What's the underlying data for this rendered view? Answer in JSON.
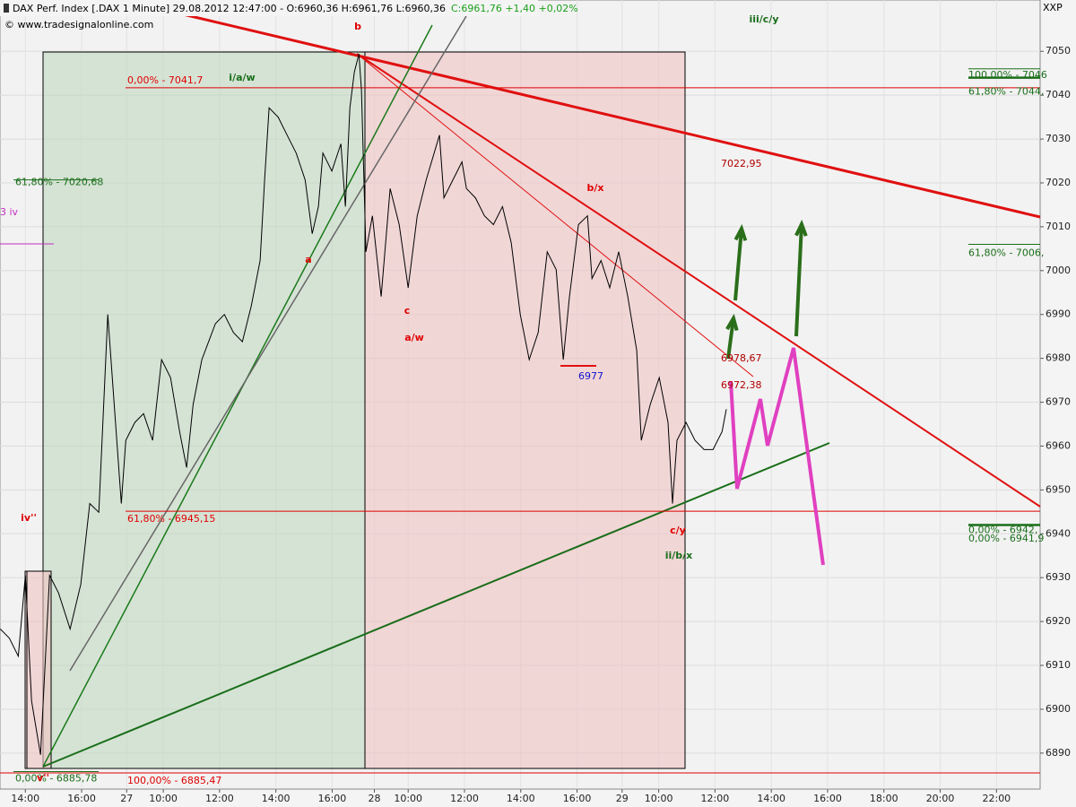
{
  "chart_data": {
    "type": "line",
    "title": "DAX Perf. Index [.DAX  1 Minute] 29.08.2012 12:47:00 - O:6960,36 H:6961,76 L:6960,36",
    "subtitle": "C:6961,76 +1,40 +0,02%",
    "source": "© www.tradesignalonline.com",
    "corner_label": "XXP",
    "xlim": [
      -0.9,
      36.05
    ],
    "ylim": [
      6881.8,
      7061.7
    ],
    "xticks": [
      {
        "value": 0,
        "label": "14:00"
      },
      {
        "value": 2,
        "label": "16:00"
      },
      {
        "value": 3.6,
        "label": "27"
      },
      {
        "value": 4.9,
        "label": "10:00"
      },
      {
        "value": 6.9,
        "label": "12:00"
      },
      {
        "value": 8.9,
        "label": "14:00"
      },
      {
        "value": 10.9,
        "label": "16:00"
      },
      {
        "value": 12.4,
        "label": "28"
      },
      {
        "value": 13.6,
        "label": "10:00"
      },
      {
        "value": 15.6,
        "label": "12:00"
      },
      {
        "value": 17.6,
        "label": "14:00"
      },
      {
        "value": 19.6,
        "label": "16:00"
      },
      {
        "value": 21.2,
        "label": "29"
      },
      {
        "value": 22.5,
        "label": "10:00"
      },
      {
        "value": 24.5,
        "label": "12:00"
      },
      {
        "value": 26.5,
        "label": "14:00"
      },
      {
        "value": 28.5,
        "label": "16:00"
      },
      {
        "value": 30.5,
        "label": "18:00"
      },
      {
        "value": 32.5,
        "label": "20:00"
      },
      {
        "value": 34.5,
        "label": "22:00"
      }
    ],
    "yticks": [
      6890,
      6900,
      6910,
      6920,
      6930,
      6940,
      6950,
      6960,
      6970,
      6980,
      6990,
      7000,
      7010,
      7020,
      7030,
      7040,
      7050
    ],
    "grid": true,
    "series": [
      {
        "color": "#000000",
        "x": [
          -0.89,
          -0.57,
          -0.25,
          0,
          0.22,
          0.54,
          0.86,
          1.18,
          1.59,
          1.97,
          2.29,
          2.61,
          2.93,
          3.18,
          3.41,
          3.57,
          3.89,
          4.2,
          4.52,
          4.84,
          5.16,
          5.48,
          5.73,
          5.96,
          6.27,
          6.75,
          7.07,
          7.39,
          7.71,
          8.03,
          8.34,
          8.5,
          8.66,
          8.98,
          9.3,
          9.62,
          9.94,
          10.19,
          10.41,
          10.57,
          10.89,
          11.21,
          11.37,
          11.53,
          11.69,
          11.85,
          11.94,
          12.1,
          12.33,
          12.64,
          12.96,
          13.28,
          13.6,
          13.92,
          14.24,
          14.71,
          14.87,
          15.19,
          15.51,
          15.67,
          15.99,
          16.31,
          16.63,
          16.95,
          17.26,
          17.58,
          17.9,
          18.22,
          18.54,
          18.86,
          19.11,
          19.33,
          19.65,
          19.97,
          20.13,
          20.45,
          20.76,
          21.08,
          21.4,
          21.72,
          21.88,
          22.2,
          22.52,
          22.83,
          22.99,
          23.15,
          23.47,
          23.79,
          24.11,
          24.43,
          24.75,
          24.9
        ],
        "values": [
          6918.3,
          6916.2,
          6912.1,
          6930.5,
          6901.9,
          6889.6,
          6930.5,
          6926.5,
          6918.3,
          6928.5,
          6946.9,
          6944.9,
          6990.0,
          6967.4,
          6946.9,
          6961.3,
          6965.4,
          6967.4,
          6961.3,
          6979.7,
          6975.6,
          6963.3,
          6955.1,
          6969.5,
          6979.7,
          6987.9,
          6990.0,
          6985.9,
          6983.8,
          6992.0,
          7002.3,
          7020.7,
          7037.1,
          7035.0,
          7030.9,
          7026.8,
          7020.7,
          7008.4,
          7014.6,
          7026.8,
          7022.7,
          7028.9,
          7014.6,
          7037.1,
          7045.3,
          7049.4,
          7041.2,
          7004.3,
          7012.5,
          6994.1,
          7018.7,
          7010.5,
          6996.1,
          7012.5,
          7020.7,
          7030.9,
          7016.6,
          7020.7,
          7024.8,
          7018.7,
          7016.6,
          7012.5,
          7010.5,
          7014.6,
          7006.4,
          6990.0,
          6979.7,
          6985.9,
          7004.3,
          7000.2,
          6979.7,
          6994.1,
          7010.5,
          7012.5,
          6998.2,
          7002.3,
          6996.1,
          7004.3,
          6994.1,
          6981.8,
          6961.3,
          6969.5,
          6975.6,
          6965.4,
          6946.9,
          6961.3,
          6965.4,
          6961.3,
          6959.2,
          6959.2,
          6963.3,
          6968.4
        ]
      }
    ],
    "levels": [
      {
        "value": 7041.7,
        "label": "0,00% - 7041,7",
        "color": "#e00000"
      },
      {
        "value": 6945.15,
        "label": "61,80% - 6945,15",
        "color": "#e00000"
      },
      {
        "value": 6885.47,
        "label": "100,00% - 6885,47",
        "color": "#e00000"
      },
      {
        "value": 7020.68,
        "label": "61,80% - 7020,68",
        "color": "#1a6e1a"
      },
      {
        "value": 6885.78,
        "label": "0,00% - 6885,78",
        "color": "#1a6e1a"
      },
      {
        "value": 7046,
        "label": "100,00% - 7046",
        "color": "#1a6e1a"
      },
      {
        "value": 7044,
        "label": "61,80% - 7044,",
        "color": "#1a6e1a"
      },
      {
        "value": 7006,
        "label": "61,80% - 7006,",
        "color": "#1a6e1a"
      },
      {
        "value": 6942,
        "label": "0,00% - 6942,",
        "color": "#1a6e1a"
      },
      {
        "value": 6941.9,
        "label": "0,00% - 6941,9",
        "color": "#1a6e1a"
      }
    ],
    "annotations": [
      "b",
      "i/a/w",
      "a",
      "c",
      "a/w",
      "b/x",
      "c/y",
      "ii/b/x",
      "iii/c/y",
      "iv''",
      "v''",
      "3 iv",
      "7022,95",
      "6978,67",
      "6972,38",
      "6977"
    ]
  }
}
